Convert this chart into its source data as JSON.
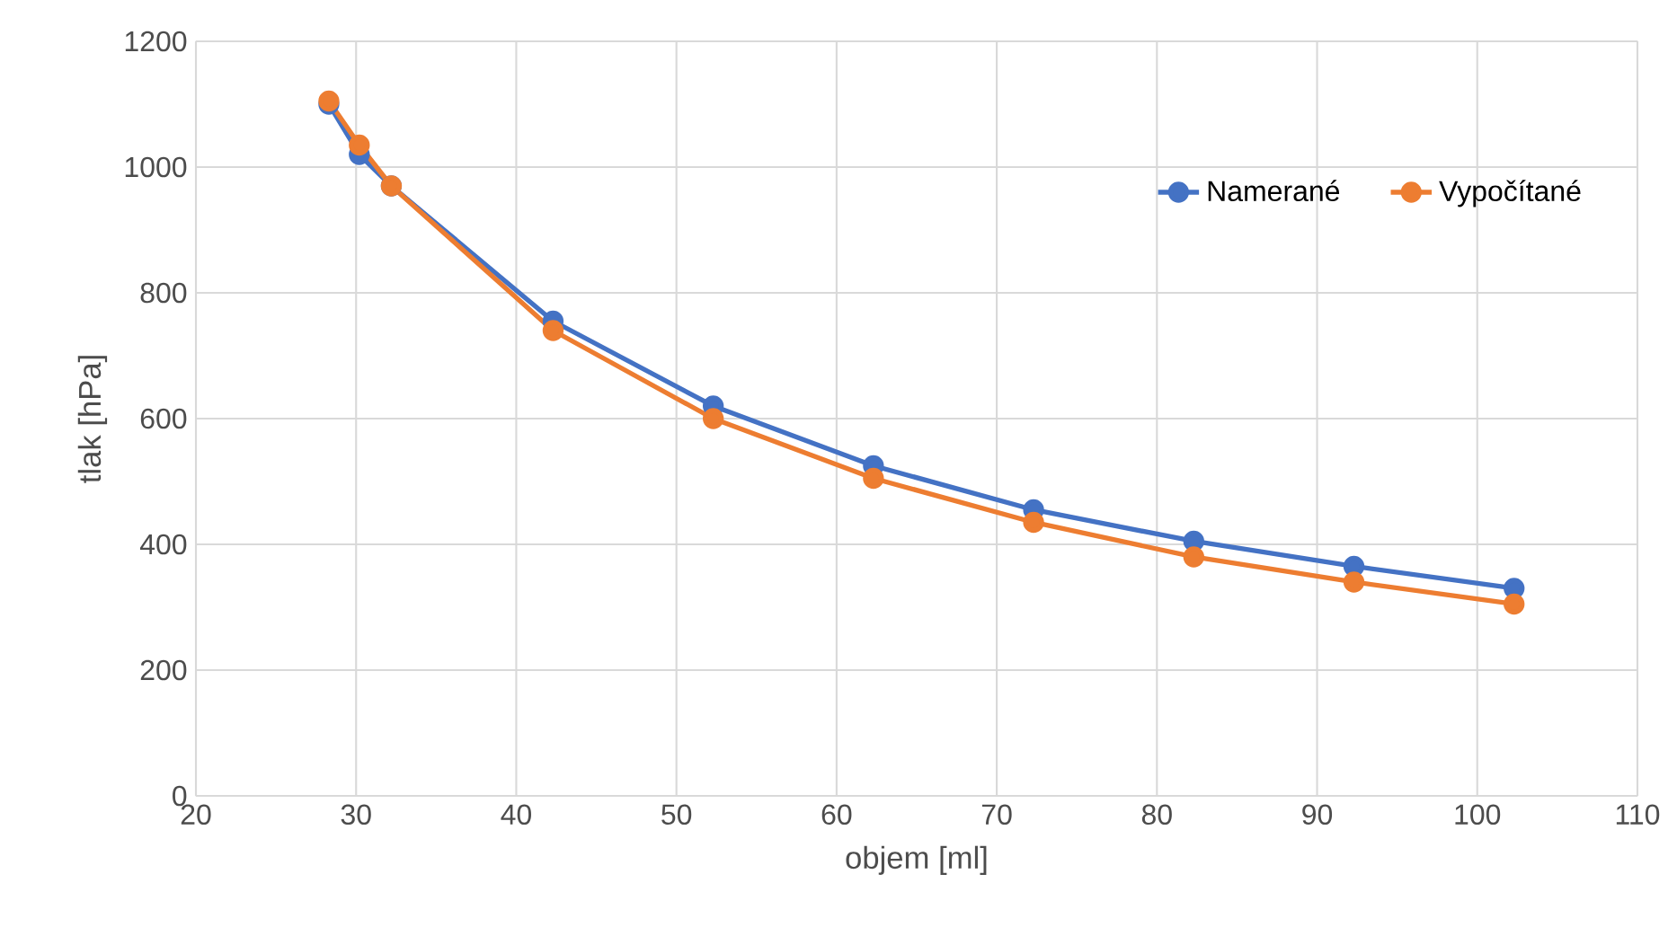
{
  "chart_data": {
    "type": "line",
    "xlabel": "objem [ml]",
    "ylabel": "tlak [hPa]",
    "x": [
      28.3,
      30.2,
      32.2,
      42.3,
      52.3,
      62.3,
      72.3,
      82.3,
      92.3,
      102.3
    ],
    "series": [
      {
        "name": "Namerané",
        "color": "#4472c4",
        "values": [
          1100,
          1020,
          970,
          755,
          620,
          525,
          455,
          405,
          365,
          330
        ]
      },
      {
        "name": "Vypočítané",
        "color": "#ed7d31",
        "values": [
          1105,
          1035,
          970,
          740,
          600,
          505,
          435,
          380,
          340,
          305
        ]
      }
    ],
    "xlim": [
      20,
      110
    ],
    "xticks": [
      20,
      30,
      40,
      50,
      60,
      70,
      80,
      90,
      100,
      110
    ],
    "ylim": [
      0,
      1200
    ],
    "yticks": [
      0,
      200,
      400,
      600,
      800,
      1000,
      1200
    ],
    "grid": true,
    "legend": "top right",
    "marker": "circle",
    "line_style": "solid"
  }
}
